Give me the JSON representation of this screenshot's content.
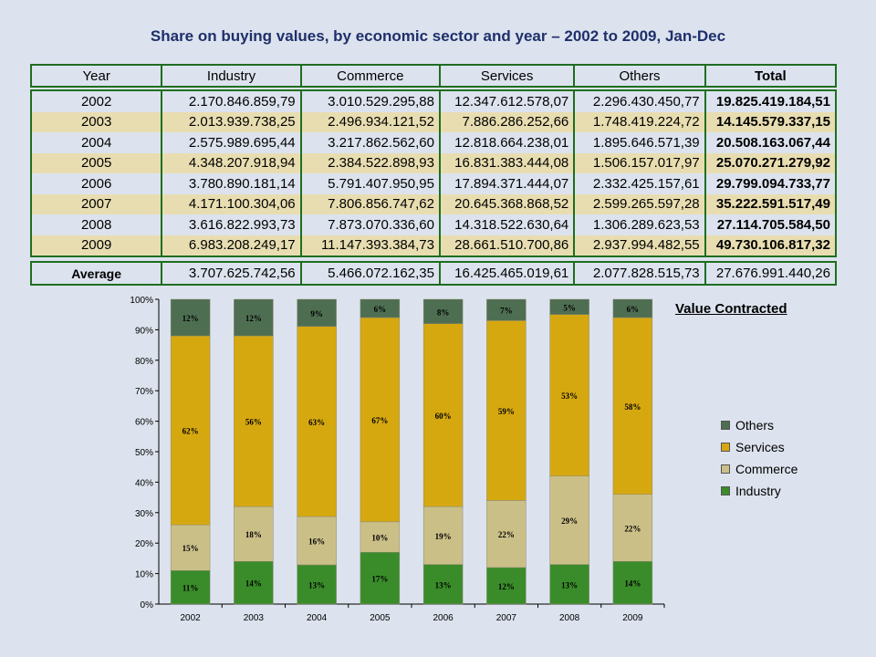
{
  "title": "Share on buying values, by economic sector and year – 2002 to 2009, Jan-Dec",
  "table": {
    "headers": [
      "Year",
      "Industry",
      "Commerce",
      "Services",
      "Others",
      "Total"
    ],
    "rows": [
      [
        "2002",
        "2.170.846.859,79",
        "3.010.529.295,88",
        "12.347.612.578,07",
        "2.296.430.450,77",
        "19.825.419.184,51"
      ],
      [
        "2003",
        "2.013.939.738,25",
        "2.496.934.121,52",
        "7.886.286.252,66",
        "1.748.419.224,72",
        "14.145.579.337,15"
      ],
      [
        "2004",
        "2.575.989.695,44",
        "3.217.862.562,60",
        "12.818.664.238,01",
        "1.895.646.571,39",
        "20.508.163.067,44"
      ],
      [
        "2005",
        "4.348.207.918,94",
        "2.384.522.898,93",
        "16.831.383.444,08",
        "1.506.157.017,97",
        "25.070.271.279,92"
      ],
      [
        "2006",
        "3.780.890.181,14",
        "5.791.407.950,95",
        "17.894.371.444,07",
        "2.332.425.157,61",
        "29.799.094.733,77"
      ],
      [
        "2007",
        "4.171.100.304,06",
        "7.806.856.747,62",
        "20.645.368.868,52",
        "2.599.265.597,28",
        "35.222.591.517,49"
      ],
      [
        "2008",
        "3.616.822.993,73",
        "7.873.070.336,60",
        "14.318.522.630,64",
        "1.306.289.623,53",
        "27.114.705.584,50"
      ],
      [
        "2009",
        "6.983.208.249,17",
        "11.147.393.384,73",
        "28.661.510.700,86",
        "2.937.994.482,55",
        "49.730.106.817,32"
      ]
    ],
    "average": [
      "Average",
      "3.707.625.742,56",
      "5.466.072.162,35",
      "16.425.465.019,61",
      "2.077.828.515,73",
      "27.676.991.440,26"
    ]
  },
  "chart_data": {
    "type": "bar",
    "stacked": "percent",
    "title": "Value Contracted",
    "categories": [
      "2002",
      "2003",
      "2004",
      "2005",
      "2006",
      "2007",
      "2008",
      "2009"
    ],
    "series": [
      {
        "name": "Industry",
        "values": [
          11,
          14,
          13,
          17,
          13,
          12,
          13,
          14
        ],
        "labels": [
          "11%",
          "14%",
          "13%",
          "17%",
          "13%",
          "12%",
          "13%",
          "14%"
        ],
        "color": "#3a8c2a"
      },
      {
        "name": "Commerce",
        "values": [
          15,
          18,
          16,
          10,
          19,
          22,
          29,
          22
        ],
        "labels": [
          "15%",
          "18%",
          "16%",
          "10%",
          "19%",
          "22%",
          "29%",
          "22%"
        ],
        "color": "#cbbf88"
      },
      {
        "name": "Services",
        "values": [
          62,
          56,
          63,
          67,
          60,
          59,
          53,
          58
        ],
        "labels": [
          "62%",
          "56%",
          "63%",
          "67%",
          "60%",
          "59%",
          "53%",
          "58%"
        ],
        "color": "#d6a810"
      },
      {
        "name": "Others",
        "values": [
          12,
          12,
          9,
          6,
          8,
          7,
          5,
          6
        ],
        "labels": [
          "12%",
          "12%",
          "9%",
          "6%",
          "8%",
          "7%",
          "5%",
          "6%"
        ],
        "color": "#4e6e52"
      }
    ],
    "yticks": [
      "0%",
      "10%",
      "20%",
      "30%",
      "40%",
      "50%",
      "60%",
      "70%",
      "80%",
      "90%",
      "100%"
    ],
    "ylim": [
      0,
      100
    ],
    "legend": [
      "Others",
      "Services",
      "Commerce",
      "Industry"
    ],
    "legend_position": "right"
  }
}
